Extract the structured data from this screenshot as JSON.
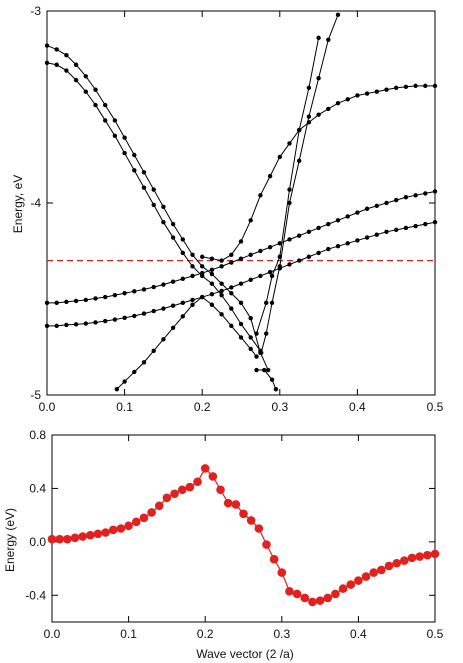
{
  "chart_data": [
    {
      "type": "line",
      "xlabel": "",
      "ylabel": "Energy, eV",
      "xlim": [
        0,
        0.5
      ],
      "ylim": [
        -5,
        -3
      ],
      "xticks": [
        "0.0",
        "0.1",
        "0.2",
        "0.3",
        "0.4",
        "0.5"
      ],
      "yticks": [
        "-3",
        "-4",
        "-5"
      ],
      "fermi_level": -4.3,
      "fermi_color": "#e0211d",
      "series_color": "#000000",
      "series": [
        {
          "x": [
            0,
            0.0125,
            0.025,
            0.0375,
            0.05,
            0.0625,
            0.075,
            0.0875,
            0.1,
            0.1125,
            0.125,
            0.1375,
            0.15,
            0.1625,
            0.175,
            0.1875,
            0.2,
            0.2125,
            0.225,
            0.2375,
            0.25,
            0.2625,
            0.275,
            0.2875,
            0.3,
            0.3125,
            0.325,
            0.3375,
            0.35,
            0.3625,
            0.375,
            0.3875,
            0.4,
            0.4125,
            0.425,
            0.4375,
            0.45,
            0.4625,
            0.475,
            0.4875,
            0.5
          ],
          "y": [
            -4.52,
            -4.52,
            -4.515,
            -4.51,
            -4.505,
            -4.497,
            -4.49,
            -4.48,
            -4.47,
            -4.46,
            -4.45,
            -4.438,
            -4.425,
            -4.41,
            -4.395,
            -4.38,
            -4.365,
            -4.348,
            -4.33,
            -4.31,
            -4.29,
            -4.27,
            -4.25,
            -4.23,
            -4.21,
            -4.19,
            -4.17,
            -4.15,
            -4.13,
            -4.11,
            -4.09,
            -4.07,
            -4.05,
            -4.03,
            -4.015,
            -4.0,
            -3.985,
            -3.97,
            -3.96,
            -3.95,
            -3.94
          ]
        },
        {
          "x": [
            0,
            0.0125,
            0.025,
            0.0375,
            0.05,
            0.0625,
            0.075,
            0.0875,
            0.1,
            0.1125,
            0.125,
            0.1375,
            0.15,
            0.1625,
            0.175,
            0.1875,
            0.2,
            0.2125,
            0.225,
            0.2375,
            0.25,
            0.2625,
            0.275,
            0.2875,
            0.3,
            0.3125,
            0.325,
            0.3375,
            0.35,
            0.3625,
            0.375,
            0.3875,
            0.4,
            0.4125,
            0.425,
            0.4375,
            0.45,
            0.4625,
            0.475,
            0.4875,
            0.5
          ],
          "y": [
            -4.64,
            -4.64,
            -4.635,
            -4.632,
            -4.628,
            -4.622,
            -4.615,
            -4.607,
            -4.598,
            -4.588,
            -4.576,
            -4.563,
            -4.55,
            -4.535,
            -4.52,
            -4.505,
            -4.49,
            -4.475,
            -4.458,
            -4.44,
            -4.42,
            -4.4,
            -4.38,
            -4.36,
            -4.34,
            -4.32,
            -4.3,
            -4.28,
            -4.26,
            -4.24,
            -4.225,
            -4.21,
            -4.195,
            -4.18,
            -4.165,
            -4.15,
            -4.14,
            -4.13,
            -4.12,
            -4.11,
            -4.1
          ]
        },
        {
          "x": [
            0,
            0.0125,
            0.025,
            0.0375,
            0.05,
            0.0625,
            0.075,
            0.0875,
            0.1,
            0.1125,
            0.125,
            0.1375,
            0.15,
            0.1625,
            0.175,
            0.1875,
            0.2,
            0.2125,
            0.225,
            0.2375,
            0.25,
            0.2625,
            0.275,
            0.285
          ],
          "y": [
            -3.18,
            -3.2,
            -3.23,
            -3.28,
            -3.34,
            -3.41,
            -3.49,
            -3.57,
            -3.66,
            -3.75,
            -3.84,
            -3.93,
            -4.02,
            -4.11,
            -4.19,
            -4.27,
            -4.33,
            -4.37,
            -4.42,
            -4.47,
            -4.52,
            -4.6,
            -4.78,
            -4.87
          ]
        },
        {
          "x": [
            0,
            0.0125,
            0.025,
            0.0375,
            0.05,
            0.0625,
            0.075,
            0.0875,
            0.1,
            0.1125,
            0.125,
            0.1375,
            0.15,
            0.1625,
            0.175,
            0.1875,
            0.2,
            0.2125,
            0.225,
            0.2375,
            0.25,
            0.2625,
            0.275
          ],
          "y": [
            -3.27,
            -3.28,
            -3.31,
            -3.36,
            -3.42,
            -3.49,
            -3.57,
            -3.65,
            -3.74,
            -3.83,
            -3.92,
            -4.01,
            -4.1,
            -4.18,
            -4.26,
            -4.33,
            -4.38,
            -4.42,
            -4.48,
            -4.55,
            -4.63,
            -4.7,
            -4.77
          ]
        },
        {
          "x": [
            0.2,
            0.2125,
            0.225,
            0.2375,
            0.25,
            0.2625,
            0.275,
            0.2875,
            0.3,
            0.3125,
            0.325,
            0.3375,
            0.35,
            0.3625,
            0.375,
            0.3875,
            0.4,
            0.4125,
            0.425,
            0.4375,
            0.45,
            0.4625,
            0.475,
            0.4875,
            0.5
          ],
          "y": [
            -4.28,
            -4.29,
            -4.3,
            -4.27,
            -4.2,
            -4.09,
            -3.96,
            -3.86,
            -3.76,
            -3.69,
            -3.62,
            -3.58,
            -3.54,
            -3.51,
            -3.48,
            -3.46,
            -3.44,
            -3.43,
            -3.42,
            -3.41,
            -3.4,
            -3.395,
            -3.39,
            -3.39,
            -3.39
          ]
        },
        {
          "x": [
            0.27,
            0.2825,
            0.29,
            0.3,
            0.3125,
            0.325,
            0.3375,
            0.35
          ],
          "y": [
            -4.68,
            -4.52,
            -4.38,
            -4.28,
            -3.93,
            -3.62,
            -3.4,
            -3.14
          ]
        },
        {
          "x": [
            0.276,
            0.2825,
            0.29,
            0.3,
            0.3125,
            0.325,
            0.3375,
            0.35,
            0.3625,
            0.375
          ],
          "y": [
            -4.78,
            -4.68,
            -4.52,
            -4.33,
            -4.0,
            -3.78,
            -3.55,
            -3.35,
            -3.15,
            -3.02
          ]
        },
        {
          "x": [
            0.09,
            0.1,
            0.1125,
            0.125,
            0.1375,
            0.15,
            0.1625,
            0.175,
            0.1875,
            0.2,
            0.2125,
            0.225,
            0.2375,
            0.25,
            0.2625,
            0.27
          ],
          "y": [
            -4.97,
            -4.93,
            -4.88,
            -4.83,
            -4.77,
            -4.71,
            -4.65,
            -4.59,
            -4.53,
            -4.49,
            -4.53,
            -4.58,
            -4.64,
            -4.7,
            -4.76,
            -4.8
          ]
        },
        {
          "x": [
            0.27,
            0.28,
            0.29,
            0.295
          ],
          "y": [
            -4.87,
            -4.87,
            -4.92,
            -4.97
          ]
        }
      ]
    },
    {
      "type": "line",
      "xlabel": "Wave vector (2 /a)",
      "ylabel": "Energy (eV)",
      "xlim": [
        0,
        0.5
      ],
      "ylim": [
        -0.6,
        0.8
      ],
      "xticks": [
        "0.0",
        "0.1",
        "0.2",
        "0.3",
        "0.4",
        "0.5"
      ],
      "yticks": [
        "0.8",
        "0.4",
        "0.0",
        "-0.4"
      ],
      "color": "#e0211d",
      "x": [
        0,
        0.01,
        0.02,
        0.03,
        0.04,
        0.05,
        0.06,
        0.07,
        0.08,
        0.09,
        0.1,
        0.11,
        0.12,
        0.13,
        0.14,
        0.15,
        0.16,
        0.17,
        0.18,
        0.19,
        0.2,
        0.21,
        0.22,
        0.23,
        0.24,
        0.25,
        0.26,
        0.27,
        0.28,
        0.29,
        0.3,
        0.31,
        0.32,
        0.33,
        0.34,
        0.35,
        0.36,
        0.37,
        0.38,
        0.39,
        0.4,
        0.41,
        0.42,
        0.43,
        0.44,
        0.45,
        0.46,
        0.47,
        0.48,
        0.49,
        0.5
      ],
      "y": [
        0.02,
        0.02,
        0.02,
        0.03,
        0.04,
        0.05,
        0.06,
        0.07,
        0.09,
        0.1,
        0.12,
        0.15,
        0.18,
        0.22,
        0.27,
        0.33,
        0.36,
        0.39,
        0.41,
        0.45,
        0.55,
        0.49,
        0.39,
        0.29,
        0.28,
        0.21,
        0.16,
        0.1,
        -0.02,
        -0.13,
        -0.23,
        -0.37,
        -0.39,
        -0.42,
        -0.45,
        -0.44,
        -0.42,
        -0.39,
        -0.35,
        -0.32,
        -0.29,
        -0.26,
        -0.23,
        -0.21,
        -0.18,
        -0.16,
        -0.14,
        -0.12,
        -0.11,
        -0.1,
        -0.09
      ]
    }
  ]
}
